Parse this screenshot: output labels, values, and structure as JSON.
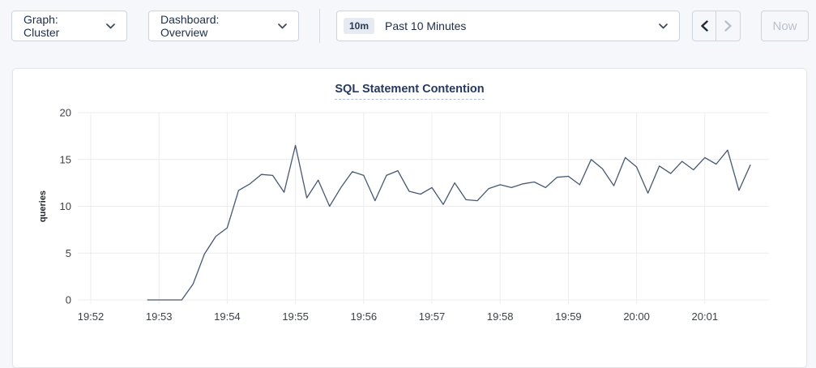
{
  "toolbar": {
    "graph_selector": {
      "label": "Graph: Cluster"
    },
    "dashboard_selector": {
      "label": "Dashboard: Overview"
    },
    "time_picker": {
      "badge": "10m",
      "label": "Past 10 Minutes"
    },
    "now_button": "Now"
  },
  "panel": {
    "title": "SQL Statement Contention"
  },
  "chart_data": {
    "type": "line",
    "title": "SQL Statement Contention",
    "xlabel": "",
    "ylabel": "queries",
    "ylim": [
      0,
      20
    ],
    "yticks": [
      0,
      5,
      10,
      15,
      20
    ],
    "xticks": [
      "19:52",
      "19:53",
      "19:54",
      "19:55",
      "19:56",
      "19:57",
      "19:58",
      "19:59",
      "20:00",
      "20:01"
    ],
    "grid": true,
    "legend_position": "none",
    "line_color": "#475872",
    "series": [
      {
        "name": "queries",
        "points": [
          [
            "19:52:50",
            0
          ],
          [
            "19:53:00",
            0
          ],
          [
            "19:53:10",
            0
          ],
          [
            "19:53:20",
            0
          ],
          [
            "19:53:30",
            1.7
          ],
          [
            "19:53:40",
            4.9
          ],
          [
            "19:53:50",
            6.8
          ],
          [
            "19:54:00",
            7.7
          ],
          [
            "19:54:10",
            11.7
          ],
          [
            "19:54:20",
            12.4
          ],
          [
            "19:54:30",
            13.4
          ],
          [
            "19:54:40",
            13.3
          ],
          [
            "19:54:50",
            11.5
          ],
          [
            "19:55:00",
            16.5
          ],
          [
            "19:55:10",
            10.9
          ],
          [
            "19:55:20",
            12.8
          ],
          [
            "19:55:30",
            10.0
          ],
          [
            "19:55:40",
            12.0
          ],
          [
            "19:55:50",
            13.7
          ],
          [
            "19:56:00",
            13.3
          ],
          [
            "19:56:10",
            10.6
          ],
          [
            "19:56:20",
            13.3
          ],
          [
            "19:56:30",
            13.8
          ],
          [
            "19:56:40",
            11.6
          ],
          [
            "19:56:50",
            11.3
          ],
          [
            "19:57:00",
            12.0
          ],
          [
            "19:57:10",
            10.2
          ],
          [
            "19:57:20",
            12.5
          ],
          [
            "19:57:30",
            10.7
          ],
          [
            "19:57:40",
            10.6
          ],
          [
            "19:57:50",
            11.9
          ],
          [
            "19:58:00",
            12.3
          ],
          [
            "19:58:10",
            12.0
          ],
          [
            "19:58:20",
            12.4
          ],
          [
            "19:58:30",
            12.6
          ],
          [
            "19:58:40",
            12.0
          ],
          [
            "19:58:50",
            13.1
          ],
          [
            "19:59:00",
            13.2
          ],
          [
            "19:59:10",
            12.3
          ],
          [
            "19:59:20",
            15.0
          ],
          [
            "19:59:30",
            14.0
          ],
          [
            "19:59:40",
            12.2
          ],
          [
            "19:59:50",
            15.2
          ],
          [
            "20:00:00",
            14.2
          ],
          [
            "20:00:10",
            11.4
          ],
          [
            "20:00:20",
            14.3
          ],
          [
            "20:00:30",
            13.5
          ],
          [
            "20:00:40",
            14.8
          ],
          [
            "20:00:50",
            13.9
          ],
          [
            "20:01:00",
            15.2
          ],
          [
            "20:01:10",
            14.5
          ],
          [
            "20:01:20",
            16.0
          ],
          [
            "20:01:30",
            11.7
          ],
          [
            "20:01:40",
            14.4
          ]
        ]
      }
    ]
  },
  "colors": {
    "page_bg": "#f5f7fa",
    "panel_bg": "#ffffff",
    "panel_border": "#e2e5ec",
    "control_border": "#cdd3e0",
    "control_text": "#1f2d45",
    "disabled_text": "#b9c0cd",
    "badge_bg": "#e6eaf2",
    "title_color": "#253961",
    "title_underline": "#b0bdd6",
    "grid_color": "#ececee",
    "tick_text": "#3d4147",
    "line_color": "#475872"
  }
}
